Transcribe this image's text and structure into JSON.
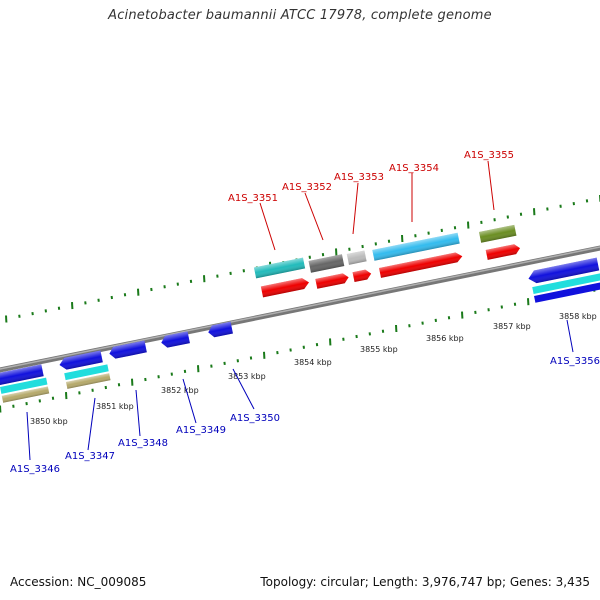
{
  "title": "Acinetobacter baumannii ATCC 17978, complete genome",
  "accession_label": "Accession: NC_009085",
  "topology_label": "Topology: circular; Length: 3,976,747 bp; Genes: 3,435",
  "kbp_labels": [
    "3850 kbp",
    "3851 kbp",
    "3852 kbp",
    "3853 kbp",
    "3854 kbp",
    "3855 kbp",
    "3856 kbp",
    "3857 kbp",
    "3858 kbp"
  ],
  "genes": {
    "a1s_3346": "A1S_3346",
    "a1s_3347": "A1S_3347",
    "a1s_3348": "A1S_3348",
    "a1s_3349": "A1S_3349",
    "a1s_3350": "A1S_3350",
    "a1s_3351": "A1S_3351",
    "a1s_3352": "A1S_3352",
    "a1s_3353": "A1S_3353",
    "a1s_3354": "A1S_3354",
    "a1s_3355": "A1S_3355",
    "a1s_3356": "A1S_3356"
  },
  "colors": {
    "forward_label": "#cc0000",
    "reverse_label": "#0000bb",
    "backbone": "#888888",
    "tick": "#1a7a1a",
    "red": "#ee0000",
    "blue": "#1111dd",
    "cyan": "#22dddd",
    "teal": "#22bbbb",
    "sky": "#33bbee",
    "darkgray": "#666666",
    "lightgray": "#bbbbbb",
    "olive": "#6b8e23",
    "tan": "#b5a96a"
  }
}
